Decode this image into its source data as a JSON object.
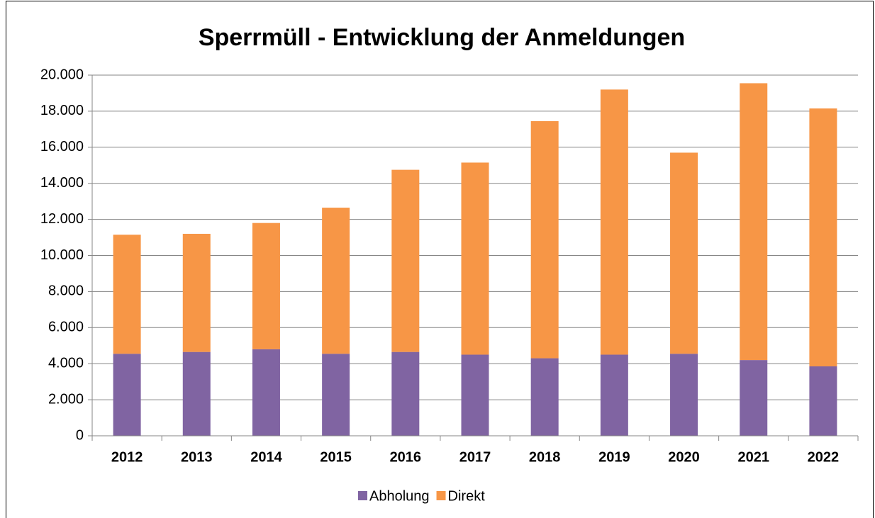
{
  "chart_data": {
    "type": "stacked_bar",
    "title": "Sperrmüll - Entwicklung der Anmeldungen",
    "categories": [
      "2012",
      "2013",
      "2014",
      "2015",
      "2016",
      "2017",
      "2018",
      "2019",
      "2020",
      "2021",
      "2022"
    ],
    "series": [
      {
        "name": "Abholung",
        "color": "#8064a2",
        "values": [
          4550,
          4650,
          4800,
          4550,
          4650,
          4500,
          4300,
          4500,
          4550,
          4200,
          3850
        ]
      },
      {
        "name": "Direkt",
        "color": "#f79646",
        "values": [
          6600,
          6550,
          7000,
          8100,
          10100,
          10650,
          13150,
          14700,
          11150,
          15350,
          14300
        ]
      }
    ],
    "ylim": [
      0,
      20000
    ],
    "yticks": [
      0,
      {
        "value": 2000,
        "label": "2.000"
      },
      {
        "value": 4000,
        "label": "4.000"
      },
      {
        "value": 6000,
        "label": "6.000"
      },
      {
        "value": 8000,
        "label": "8.000"
      },
      {
        "value": 10000,
        "label": "10.000"
      },
      {
        "value": 12000,
        "label": "12.000"
      },
      {
        "value": 14000,
        "label": "14.000"
      },
      {
        "value": 16000,
        "label": "16.000"
      },
      {
        "value": 18000,
        "label": "18.000"
      },
      {
        "value": 20000,
        "label": "20.000"
      }
    ],
    "grid": true,
    "legend": "bottom"
  }
}
